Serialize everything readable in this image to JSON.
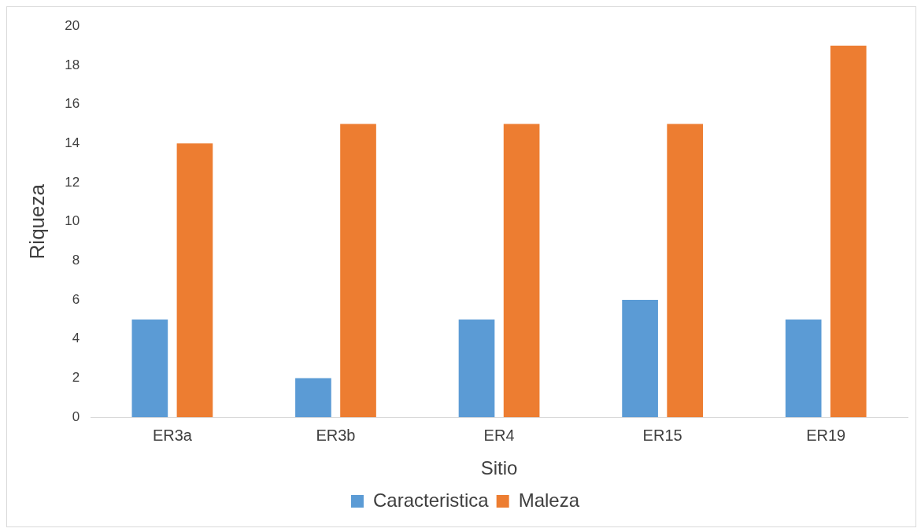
{
  "chart_data": {
    "type": "bar",
    "xlabel": "Sitio",
    "ylabel": "Riqueza",
    "categories": [
      "ER3a",
      "ER3b",
      "ER4",
      "ER15",
      "ER19"
    ],
    "series": [
      {
        "name": "Caracteristica",
        "color": "#5b9bd5",
        "values": [
          5,
          2,
          5,
          6,
          5
        ]
      },
      {
        "name": "Maleza",
        "color": "#ed7d31",
        "values": [
          14,
          15,
          15,
          15,
          19
        ]
      }
    ],
    "ylim": [
      0,
      20
    ],
    "yticks": [
      0,
      2,
      4,
      6,
      8,
      10,
      12,
      14,
      16,
      18,
      20
    ],
    "grid": false,
    "legend": "bottom"
  }
}
